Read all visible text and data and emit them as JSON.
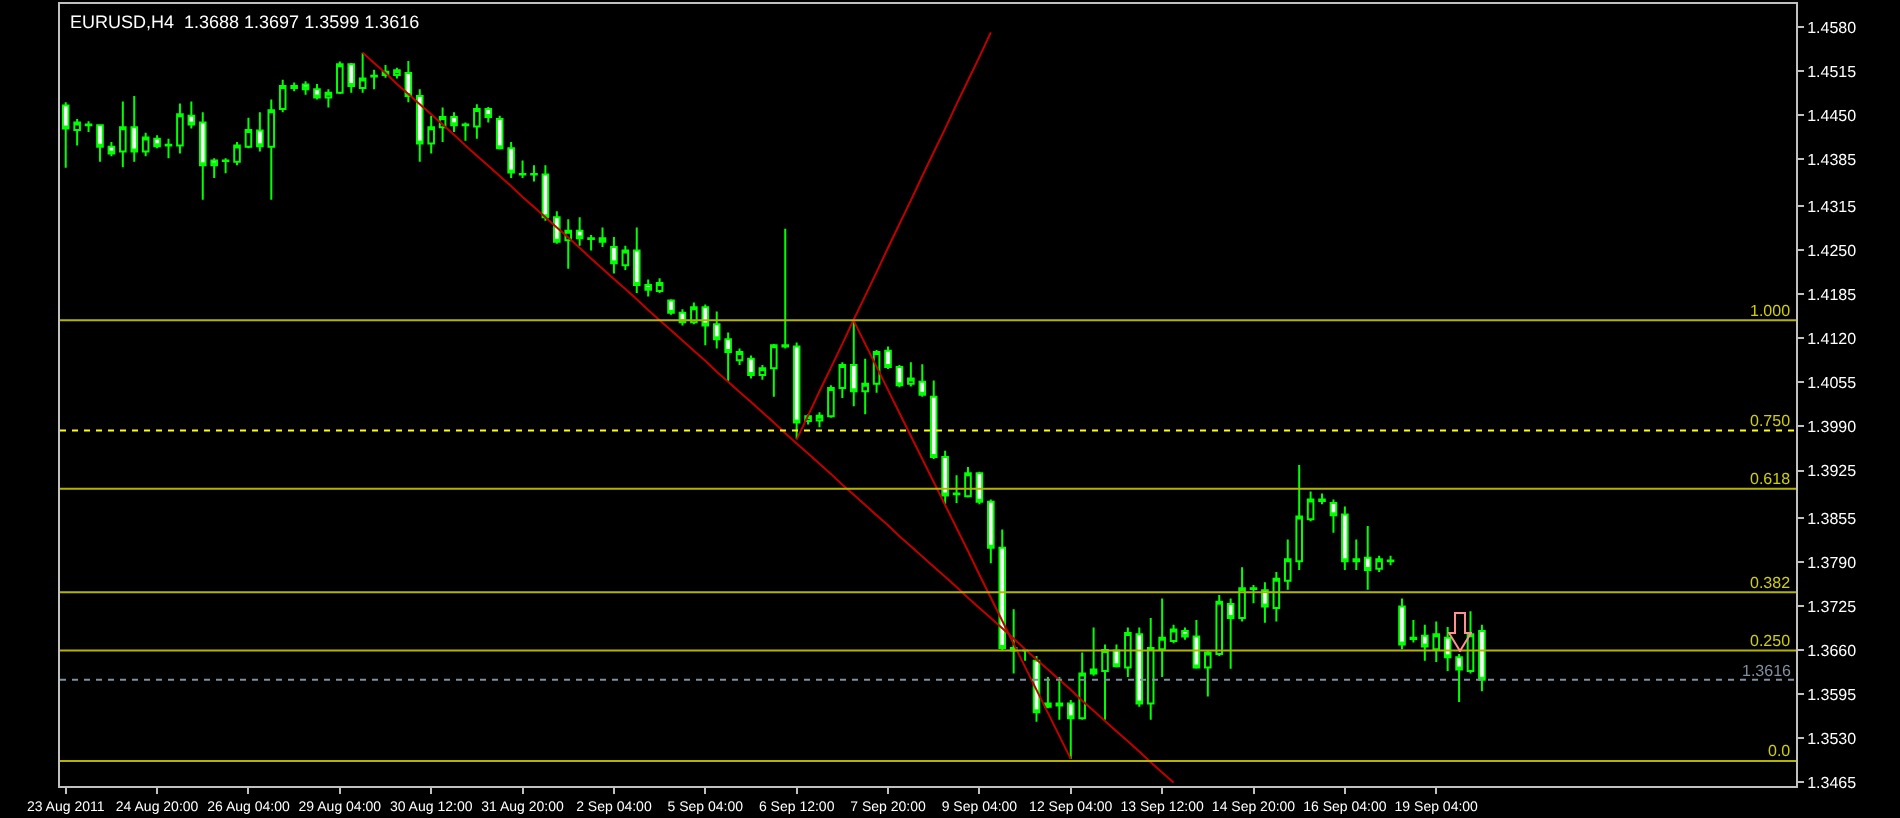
{
  "chart_data": {
    "type": "candlestick",
    "title": "EURUSD,H4  1.3688 1.3697 1.3599 1.3616",
    "categories": [
      "23 Aug 2011",
      null,
      null,
      null,
      null,
      null,
      null,
      null,
      "24 Aug 20:00",
      null,
      null,
      null,
      null,
      null,
      null,
      null,
      "26 Aug 04:00",
      null,
      null,
      null,
      null,
      null,
      null,
      null,
      "29 Aug 04:00",
      null,
      null,
      null,
      null,
      null,
      null,
      null,
      "30 Aug 12:00",
      null,
      null,
      null,
      null,
      null,
      null,
      null,
      "31 Aug 20:00",
      null,
      null,
      null,
      null,
      null,
      null,
      null,
      "2 Sep 04:00",
      null,
      null,
      null,
      null,
      null,
      null,
      null,
      "5 Sep 04:00",
      null,
      null,
      null,
      null,
      null,
      null,
      null,
      "6 Sep 12:00",
      null,
      null,
      null,
      null,
      null,
      null,
      null,
      "7 Sep 20:00",
      null,
      null,
      null,
      null,
      null,
      null,
      null,
      "9 Sep 04:00",
      null,
      null,
      null,
      null,
      null,
      null,
      null,
      "12 Sep 04:00",
      null,
      null,
      null,
      null,
      null,
      null,
      null,
      "13 Sep 12:00",
      null,
      null,
      null,
      null,
      null,
      null,
      null,
      "14 Sep 20:00",
      null,
      null,
      null,
      null,
      null,
      null,
      null,
      "16 Sep 04:00",
      null,
      null,
      null,
      null,
      null,
      null,
      null,
      "19 Sep 04:00",
      null,
      null,
      null,
      null,
      null,
      null,
      null,
      null,
      null,
      null,
      null,
      null,
      null,
      null,
      null,
      null,
      null,
      null,
      null,
      null,
      null,
      null,
      null,
      null,
      null,
      null,
      null,
      null,
      null,
      null,
      null
    ],
    "ohlc": [
      [
        1.4464,
        1.4469,
        1.4372,
        1.443
      ],
      [
        1.4428,
        1.4444,
        1.4405,
        1.4439
      ],
      [
        1.4436,
        1.4441,
        1.4425,
        1.4435
      ],
      [
        1.4435,
        1.4436,
        1.4381,
        1.4403
      ],
      [
        1.4403,
        1.441,
        1.4389,
        1.4393
      ],
      [
        1.4396,
        1.447,
        1.4373,
        1.4432
      ],
      [
        1.4432,
        1.4478,
        1.4381,
        1.4396
      ],
      [
        1.4396,
        1.4424,
        1.4389,
        1.4417
      ],
      [
        1.4415,
        1.442,
        1.4401,
        1.4404
      ],
      [
        1.4405,
        1.4415,
        1.4386,
        1.4406
      ],
      [
        1.4405,
        1.4467,
        1.4393,
        1.4451
      ],
      [
        1.4449,
        1.447,
        1.443,
        1.4436
      ],
      [
        1.4439,
        1.4454,
        1.4325,
        1.4376
      ],
      [
        1.4383,
        1.4386,
        1.4357,
        1.4376
      ],
      [
        1.4383,
        1.4386,
        1.4364,
        1.4382
      ],
      [
        1.4381,
        1.441,
        1.4376,
        1.4405
      ],
      [
        1.4403,
        1.4446,
        1.4401,
        1.4428
      ],
      [
        1.4427,
        1.4454,
        1.4396,
        1.4404
      ],
      [
        1.4403,
        1.4473,
        1.4325,
        1.4457
      ],
      [
        1.4459,
        1.4502,
        1.4454,
        1.4493
      ],
      [
        1.4493,
        1.4498,
        1.4485,
        1.449
      ],
      [
        1.4495,
        1.45,
        1.448,
        1.4488
      ],
      [
        1.4488,
        1.4496,
        1.4473,
        1.4476
      ],
      [
        1.4476,
        1.4488,
        1.4461,
        1.4483
      ],
      [
        1.4483,
        1.4529,
        1.4481,
        1.4525
      ],
      [
        1.4525,
        1.4527,
        1.4483,
        1.4493
      ],
      [
        1.449,
        1.4542,
        1.4483,
        1.4504
      ],
      [
        1.4507,
        1.4517,
        1.4488,
        1.4508
      ],
      [
        1.4509,
        1.4524,
        1.4505,
        1.4514
      ],
      [
        1.4509,
        1.452,
        1.4504,
        1.4516
      ],
      [
        1.4512,
        1.453,
        1.4469,
        1.4478
      ],
      [
        1.4478,
        1.4488,
        1.4381,
        1.4408
      ],
      [
        1.4408,
        1.4449,
        1.4393,
        1.4432
      ],
      [
        1.4432,
        1.4461,
        1.441,
        1.4447
      ],
      [
        1.4447,
        1.4454,
        1.4425,
        1.4435
      ],
      [
        1.4435,
        1.4439,
        1.4412,
        1.4436
      ],
      [
        1.4433,
        1.4466,
        1.4415,
        1.4459
      ],
      [
        1.4459,
        1.4462,
        1.4439,
        1.4447
      ],
      [
        1.4444,
        1.4449,
        1.4399,
        1.4401
      ],
      [
        1.4401,
        1.441,
        1.4357,
        1.4365
      ],
      [
        1.4362,
        1.4383,
        1.4357,
        1.4363
      ],
      [
        1.4363,
        1.4376,
        1.4352,
        1.4362
      ],
      [
        1.4362,
        1.4376,
        1.4294,
        1.4299
      ],
      [
        1.4299,
        1.4308,
        1.426,
        1.4263
      ],
      [
        1.4265,
        1.4296,
        1.4223,
        1.4279
      ],
      [
        1.4279,
        1.4299,
        1.4257,
        1.4268
      ],
      [
        1.4267,
        1.4273,
        1.425,
        1.4268
      ],
      [
        1.4268,
        1.4284,
        1.4255,
        1.4263
      ],
      [
        1.4255,
        1.427,
        1.4216,
        1.4231
      ],
      [
        1.4228,
        1.4257,
        1.4221,
        1.425
      ],
      [
        1.425,
        1.4284,
        1.4187,
        1.4199
      ],
      [
        1.4199,
        1.4207,
        1.4182,
        1.4192
      ],
      [
        1.419,
        1.4209,
        1.4187,
        1.4202
      ],
      [
        1.4176,
        1.4178,
        1.4155,
        1.4158
      ],
      [
        1.4158,
        1.4163,
        1.4139,
        1.4144
      ],
      [
        1.4144,
        1.4173,
        1.4141,
        1.4166
      ],
      [
        1.4166,
        1.417,
        1.411,
        1.4139
      ],
      [
        1.4141,
        1.416,
        1.4105,
        1.4119
      ],
      [
        1.4119,
        1.4129,
        1.4056,
        1.41
      ],
      [
        1.4088,
        1.4105,
        1.4081,
        1.41
      ],
      [
        1.409,
        1.4095,
        1.4061,
        1.4066
      ],
      [
        1.4066,
        1.4081,
        1.4059,
        1.4076
      ],
      [
        1.4076,
        1.4112,
        1.4034,
        1.411
      ],
      [
        1.411,
        1.4282,
        1.4105,
        1.4108
      ],
      [
        1.4108,
        1.4114,
        1.3971,
        1.3996
      ],
      [
        1.3998,
        1.4008,
        1.3993,
        1.4005
      ],
      [
        1.3999,
        1.4011,
        1.3989,
        1.4006
      ],
      [
        1.4005,
        1.4051,
        1.4003,
        1.4047
      ],
      [
        1.4047,
        1.4085,
        1.4032,
        1.4081
      ],
      [
        1.4081,
        1.4146,
        1.402,
        1.4042
      ],
      [
        1.4042,
        1.409,
        1.4008,
        1.4053
      ],
      [
        1.4053,
        1.4103,
        1.404,
        1.41
      ],
      [
        1.4102,
        1.4108,
        1.4075,
        1.4078
      ],
      [
        1.4078,
        1.4081,
        1.4048,
        1.4051
      ],
      [
        1.4053,
        1.4085,
        1.4049,
        1.4061
      ],
      [
        1.4056,
        1.4082,
        1.4034,
        1.4037
      ],
      [
        1.4034,
        1.4058,
        1.3942,
        1.3945
      ],
      [
        1.3945,
        1.3954,
        1.3875,
        1.3888
      ],
      [
        1.389,
        1.3918,
        1.3877,
        1.3891
      ],
      [
        1.3887,
        1.393,
        1.3885,
        1.3921
      ],
      [
        1.3921,
        1.3923,
        1.3875,
        1.3879
      ],
      [
        1.3879,
        1.3882,
        1.3788,
        1.3811
      ],
      [
        1.3811,
        1.3838,
        1.3659,
        1.3663
      ],
      [
        1.3663,
        1.372,
        1.3625,
        1.3659
      ],
      [
        1.3659,
        1.3661,
        1.3644,
        1.3659
      ],
      [
        1.3644,
        1.3651,
        1.3554,
        1.3568
      ],
      [
        1.3576,
        1.362,
        1.3574,
        1.3581
      ],
      [
        1.3581,
        1.362,
        1.3557,
        1.3578
      ],
      [
        1.3581,
        1.3586,
        1.3499,
        1.3559
      ],
      [
        1.3559,
        1.3656,
        1.3557,
        1.3625
      ],
      [
        1.3625,
        1.3693,
        1.3622,
        1.3631
      ],
      [
        1.3629,
        1.3668,
        1.3557,
        1.366
      ],
      [
        1.3659,
        1.3668,
        1.3634,
        1.3636
      ],
      [
        1.3634,
        1.3693,
        1.362,
        1.3685
      ],
      [
        1.3683,
        1.3693,
        1.3576,
        1.3581
      ],
      [
        1.3581,
        1.3707,
        1.3557,
        1.3663
      ],
      [
        1.3661,
        1.3736,
        1.362,
        1.3678
      ],
      [
        1.3673,
        1.3697,
        1.367,
        1.369
      ],
      [
        1.3688,
        1.3693,
        1.3675,
        1.368
      ],
      [
        1.368,
        1.3704,
        1.3632,
        1.3634
      ],
      [
        1.3634,
        1.3659,
        1.3591,
        1.3656
      ],
      [
        1.3654,
        1.3741,
        1.3651,
        1.3731
      ],
      [
        1.3728,
        1.3736,
        1.3632,
        1.3707
      ],
      [
        1.3707,
        1.3782,
        1.3702,
        1.3751
      ],
      [
        1.3751,
        1.3756,
        1.3729,
        1.375
      ],
      [
        1.3748,
        1.376,
        1.37,
        1.3724
      ],
      [
        1.3722,
        1.3775,
        1.3702,
        1.3765
      ],
      [
        1.3762,
        1.3823,
        1.3749,
        1.3794
      ],
      [
        1.3791,
        1.3933,
        1.3778,
        1.3857
      ],
      [
        1.3853,
        1.3894,
        1.385,
        1.3882
      ],
      [
        1.3882,
        1.3891,
        1.3875,
        1.388
      ],
      [
        1.3877,
        1.3882,
        1.3833,
        1.3859
      ],
      [
        1.386,
        1.3872,
        1.3778,
        1.3791
      ],
      [
        1.3791,
        1.3823,
        1.3778,
        1.3794
      ],
      [
        1.3796,
        1.3843,
        1.3749,
        1.3778
      ],
      [
        1.378,
        1.3799,
        1.3775,
        1.3794
      ],
      [
        1.3791,
        1.3799,
        1.3785,
        1.3792
      ],
      [
        1.3724,
        1.3736,
        1.3661,
        1.3668
      ],
      [
        1.3678,
        1.3704,
        1.3671,
        1.3676
      ],
      [
        1.3681,
        1.3697,
        1.3644,
        1.3665
      ],
      [
        1.3661,
        1.3702,
        1.3642,
        1.3683
      ],
      [
        1.3678,
        1.3694,
        1.3629,
        1.3649
      ],
      [
        1.3649,
        1.3654,
        1.3583,
        1.3631
      ],
      [
        1.3629,
        1.3717,
        1.3625,
        1.3683
      ],
      [
        1.3688,
        1.3697,
        1.3599,
        1.3616
      ],
      null,
      null,
      null,
      null,
      null,
      null,
      null,
      null,
      null,
      null,
      null,
      null,
      null,
      null,
      null,
      null,
      null,
      null,
      null,
      null,
      null,
      null,
      null,
      null,
      null,
      null,
      null
    ],
    "series": [
      {
        "type": "line",
        "color": "#c00000",
        "values": [
          null,
          null,
          null,
          null,
          null,
          null,
          null,
          null,
          null,
          null,
          null,
          null,
          null,
          null,
          null,
          null,
          null,
          null,
          null,
          null,
          null,
          null,
          null,
          null,
          null,
          null,
          1.4542,
          1.4527,
          1.4512,
          1.4496,
          1.4481,
          1.4466,
          1.4451,
          1.4436,
          1.4421,
          1.4405,
          1.439,
          1.4375,
          1.436,
          1.4345,
          1.4329,
          1.4314,
          1.4299,
          1.4284,
          1.4269,
          1.4254,
          1.4238,
          1.4223,
          1.4208,
          1.4193,
          1.4178,
          1.4162,
          1.4147,
          1.4132,
          1.4117,
          1.4102,
          1.4087,
          1.4071,
          1.4056,
          1.4041,
          1.4026,
          1.4011,
          1.3996,
          1.398,
          1.3965,
          1.395,
          1.3935,
          1.392,
          1.3904,
          1.3889,
          1.3874,
          1.3859,
          1.3844,
          1.3828,
          1.3813,
          1.3798,
          1.3783,
          1.3768,
          1.3753,
          1.3737,
          1.3722,
          1.3707,
          1.3692,
          1.3677,
          1.3661,
          1.3646,
          1.3631,
          1.3616,
          1.3601,
          1.3585,
          1.357,
          1.3555,
          1.354,
          1.3525,
          1.351,
          1.3494,
          1.3479,
          1.3464,
          null,
          null,
          null,
          null,
          null,
          null,
          null,
          null,
          null,
          null,
          null,
          null,
          null,
          null,
          null,
          null,
          null,
          null,
          null,
          null,
          null,
          null,
          null,
          null,
          null,
          null,
          null,
          null,
          null,
          null,
          null,
          null,
          null,
          null,
          null,
          null,
          null,
          null,
          null,
          null,
          null,
          null,
          null,
          null,
          null,
          null,
          null,
          null,
          null,
          null,
          null,
          null,
          null,
          null
        ]
      },
      {
        "type": "line",
        "color": "#c00000",
        "values": [
          null,
          null,
          null,
          null,
          null,
          null,
          null,
          null,
          null,
          null,
          null,
          null,
          null,
          null,
          null,
          null,
          null,
          null,
          null,
          null,
          null,
          null,
          null,
          null,
          null,
          null,
          null,
          null,
          null,
          null,
          null,
          null,
          null,
          null,
          null,
          null,
          null,
          null,
          null,
          null,
          null,
          null,
          null,
          null,
          null,
          null,
          null,
          null,
          null,
          null,
          null,
          null,
          null,
          null,
          null,
          null,
          null,
          null,
          null,
          null,
          null,
          null,
          null,
          null,
          1.3971,
          1.4006,
          1.4042,
          1.4077,
          1.4112,
          1.4148,
          1.4183,
          1.4218,
          1.4254,
          1.4289,
          1.4324,
          1.436,
          1.4395,
          1.443,
          1.4466,
          1.4501,
          1.4536,
          1.4572,
          null,
          null,
          null,
          null,
          null,
          null,
          null,
          null,
          null,
          null,
          null,
          null,
          null,
          null,
          null,
          null,
          null,
          null,
          null,
          null,
          null,
          null,
          null,
          null,
          null,
          null,
          null,
          null,
          null,
          null,
          null,
          null,
          null,
          null,
          null,
          null,
          null,
          null,
          null,
          null,
          null,
          null,
          null,
          null,
          null,
          null,
          null,
          null,
          null,
          null,
          null,
          null,
          null,
          null,
          null,
          null,
          null,
          null,
          null,
          null,
          null,
          null,
          null,
          null,
          null,
          null,
          null,
          null,
          null,
          null
        ]
      },
      {
        "type": "line",
        "color": "#c00000",
        "values": [
          null,
          null,
          null,
          null,
          null,
          null,
          null,
          null,
          null,
          null,
          null,
          null,
          null,
          null,
          null,
          null,
          null,
          null,
          null,
          null,
          null,
          null,
          null,
          null,
          null,
          null,
          null,
          null,
          null,
          null,
          null,
          null,
          null,
          null,
          null,
          null,
          null,
          null,
          null,
          null,
          null,
          null,
          null,
          null,
          null,
          null,
          null,
          null,
          null,
          null,
          null,
          null,
          null,
          null,
          null,
          null,
          null,
          null,
          null,
          null,
          null,
          null,
          null,
          null,
          null,
          null,
          null,
          null,
          null,
          1.4146,
          1.4112,
          1.4078,
          1.4044,
          1.401,
          1.3976,
          1.3942,
          1.3908,
          1.3874,
          1.384,
          1.3806,
          1.3771,
          1.3737,
          1.3703,
          1.3669,
          1.3635,
          1.3601,
          1.3567,
          1.3533,
          1.3499,
          null,
          null,
          null,
          null,
          null,
          null,
          null,
          null,
          null,
          null,
          null,
          null,
          null,
          null,
          null,
          null,
          null,
          null,
          null,
          null,
          null,
          null,
          null,
          null,
          null,
          null,
          null,
          null,
          null,
          null,
          null,
          null,
          null,
          null,
          null,
          null,
          null,
          null,
          null,
          null,
          null,
          null,
          null,
          null,
          null,
          null,
          null,
          null,
          null,
          null,
          null,
          null,
          null,
          null,
          null,
          null,
          null,
          null,
          null,
          null,
          null,
          null,
          null
        ]
      }
    ],
    "ylim": [
      1.3459,
      1.4614
    ],
    "yticks": [
      {
        "value": 1.458,
        "label": "1.4580"
      },
      1.4515,
      {
        "value": 1.445,
        "label": "1.4450"
      },
      1.4385,
      1.4315,
      {
        "value": 1.425,
        "label": "1.4250"
      },
      1.4185,
      {
        "value": 1.412,
        "label": "1.4120"
      },
      1.4055,
      {
        "value": 1.399,
        "label": "1.3990"
      },
      1.3925,
      1.3855,
      {
        "value": 1.379,
        "label": "1.3790"
      },
      1.3725,
      {
        "value": 1.366,
        "label": "1.3660"
      },
      1.3595,
      {
        "value": 1.353,
        "label": "1.3530"
      },
      1.3465
    ],
    "ref_lines": [
      {
        "axis": "y",
        "value": 1.4147,
        "color": "#b4b400",
        "line_style": "solid"
      },
      {
        "axis": "y",
        "value": 1.3984,
        "color": "#ffff00",
        "line_style": "dotted"
      },
      {
        "axis": "y",
        "value": 1.3898,
        "color": "#b4b400",
        "line_style": "solid"
      },
      {
        "axis": "y",
        "value": 1.3745,
        "color": "#b4b400",
        "line_style": "solid"
      },
      {
        "axis": "y",
        "value": 1.3659,
        "color": "#b4b400",
        "line_style": "solid"
      },
      {
        "axis": "y",
        "value": 1.3496,
        "color": "#b4b400",
        "line_style": "solid"
      },
      {
        "axis": "y",
        "value": 1.3616,
        "label": "1.3616",
        "color": "#8090a0",
        "line_style": "dotted"
      }
    ],
    "annotations": [
      {
        "text": "1.000",
        "y": 1.4147
      },
      {
        "text": "0.750",
        "y": 1.3984
      },
      {
        "text": "0.618",
        "y": 1.3898
      },
      {
        "text": "0.382",
        "y": 1.3745
      },
      {
        "text": "0.250",
        "y": 1.3659
      },
      {
        "text": "0.0",
        "y": 1.3496
      }
    ],
    "grid": false
  }
}
